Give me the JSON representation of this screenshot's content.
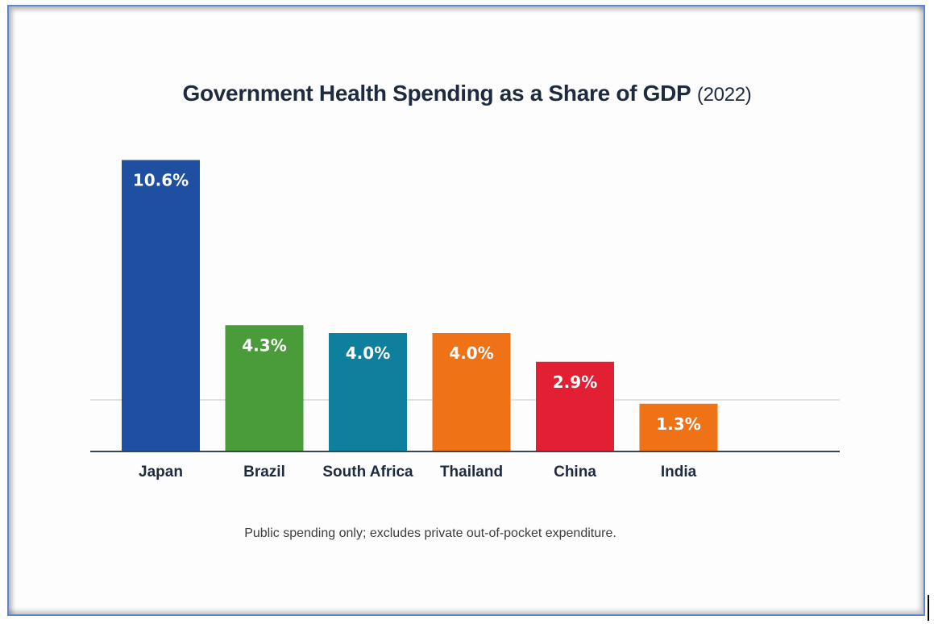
{
  "chart_data": {
    "type": "bar",
    "title": "Government Health Spending as a Share of GDP",
    "title_suffix": "(2022)",
    "xlabel": "",
    "ylabel": "",
    "categories": [
      "Japan",
      "Brazil",
      "South Africa",
      "Thailand",
      "China",
      "India"
    ],
    "values": [
      10.6,
      4.3,
      4.0,
      4.0,
      2.9,
      1.3
    ],
    "data_labels": [
      "10.6%",
      "4.3%",
      "4.0%",
      "4.0%",
      "2.9%",
      "1.3%"
    ],
    "colors": [
      "#1f4fa0",
      "#4a9c3a",
      "#0e7f9c",
      "#ef7217",
      "#e21f33",
      "#ef7217"
    ],
    "units": "% of GDP",
    "grid": true,
    "legend": "none",
    "footnote": "Public spending only; excludes private out-of-pocket expenditure."
  }
}
